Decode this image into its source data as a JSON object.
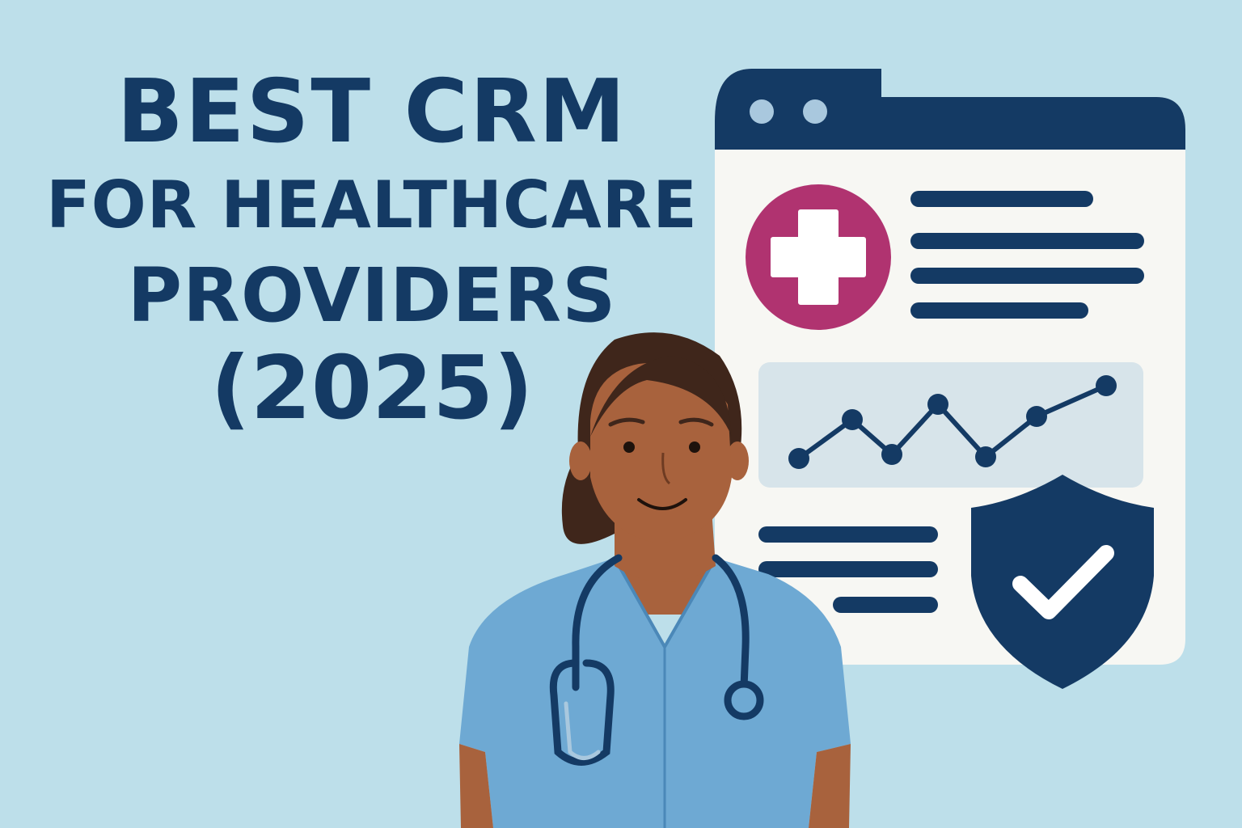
{
  "title": {
    "line1": "BEST CRM",
    "line2": "FOR HEALTHCARE",
    "line3": "PROVIDERS",
    "line4": "(2025)"
  },
  "colors": {
    "background": "#bddfea",
    "navy": "#143a64",
    "medical_accent": "#b03370",
    "panel": "#f7f7f3",
    "scrubs": "#6ea9d3"
  },
  "icons": [
    "browser-window",
    "medical-cross-icon",
    "line-chart-icon",
    "shield-check-icon",
    "stethoscope-icon"
  ]
}
